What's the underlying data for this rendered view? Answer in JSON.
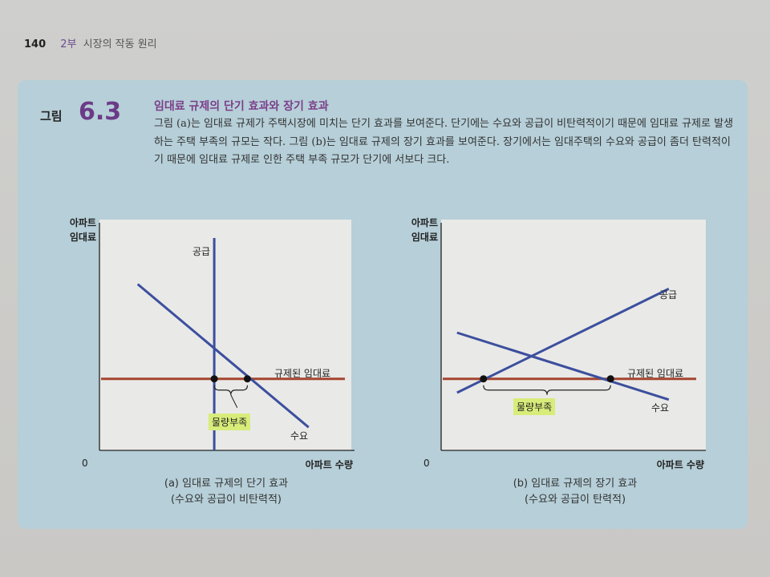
{
  "header": {
    "page_number": "140",
    "part": "2부",
    "section": "시장의 작동 원리"
  },
  "figure": {
    "label": "그림",
    "number": "6.3",
    "title": "임대료 규제의 단기 효과와 장기 효과",
    "caption": "그림 (a)는 임대료 규제가 주택시장에 미치는 단기 효과를 보여준다. 단기에는 수요와 공급이 비탄력적이기 때문에 임대료 규제로 발생하는 주택 부족의 규모는 작다. 그림 (b)는 임대료 규제의 장기 효과를 보여준다. 장기에서는 임대주택의 수요와 공급이 좀더 탄력적이기 때문에 임대료 규제로 인한 주택 부족 규모가 단기에 서보다 크다."
  },
  "chart_data": [
    {
      "type": "line",
      "ylabel": [
        "아파트",
        "임대료"
      ],
      "xlabel": "아파트 수량",
      "origin_label": "0",
      "xlim": [
        0,
        100
      ],
      "ylim": [
        0,
        100
      ],
      "series": [
        {
          "name": "공급",
          "x": [
            45,
            45
          ],
          "y": [
            92,
            0
          ]
        },
        {
          "name": "수요",
          "x": [
            15,
            82
          ],
          "y": [
            72,
            10
          ]
        }
      ],
      "regulated_price": {
        "label": "규제된 임대료",
        "y": 31
      },
      "points": [
        {
          "x": 45,
          "y": 31
        },
        {
          "x": 58,
          "y": 31
        }
      ],
      "shortage_label": "물량부족",
      "caption": [
        "(a) 임대료 규제의 단기 효과",
        "(수요와 공급이 비탄력적)"
      ],
      "colors": {
        "supply": "#3c4f9e",
        "demand": "#3c4f9e",
        "price": "#a5452f"
      }
    },
    {
      "type": "line",
      "ylabel": [
        "아파트",
        "임대료"
      ],
      "xlabel": "아파트 수량",
      "origin_label": "0",
      "xlim": [
        0,
        100
      ],
      "ylim": [
        0,
        100
      ],
      "series": [
        {
          "name": "공급",
          "x": [
            6,
            86
          ],
          "y": [
            25,
            70
          ]
        },
        {
          "name": "수요",
          "x": [
            6,
            86
          ],
          "y": [
            51,
            22
          ]
        }
      ],
      "regulated_price": {
        "label": "규제된 임대료",
        "y": 31
      },
      "points": [
        {
          "x": 16,
          "y": 31
        },
        {
          "x": 64,
          "y": 31
        }
      ],
      "shortage_label": "물량부족",
      "caption": [
        "(b) 임대료 규제의 장기 효과",
        "(수요와 공급이 탄력적)"
      ],
      "colors": {
        "supply": "#3c4f9e",
        "demand": "#3c4f9e",
        "price": "#a5452f"
      }
    }
  ]
}
